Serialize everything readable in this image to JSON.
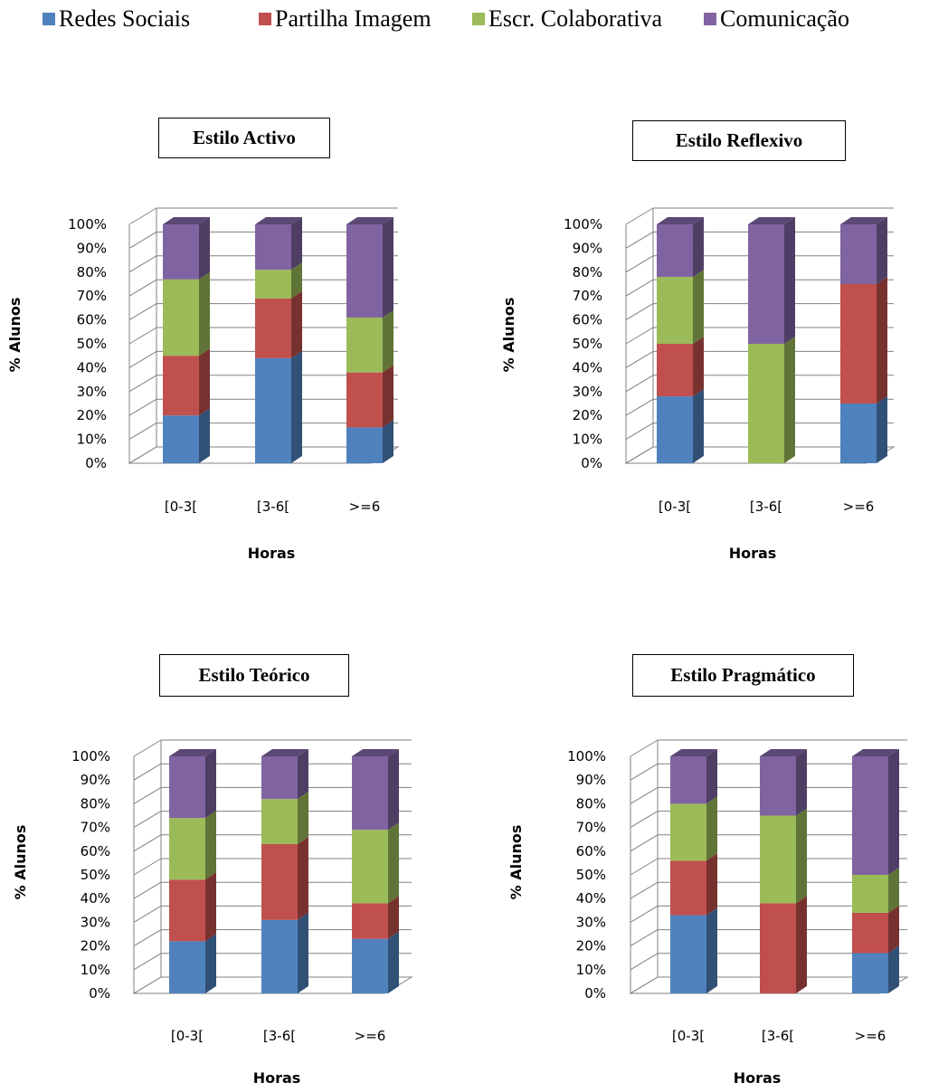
{
  "legend": [
    {
      "name": "Redes Sociais",
      "color": "#4f81bd"
    },
    {
      "name": "Partilha Imagem",
      "color": "#c0504d"
    },
    {
      "name": "Escr. Colaborativa",
      "color": "#9bbb59"
    },
    {
      "name": "Comunicação",
      "color": "#8064a2"
    }
  ],
  "chart_data": [
    {
      "type": "bar",
      "stacked": true,
      "title": "Estilo Activo",
      "xlabel": "Horas",
      "ylabel": "% Alunos",
      "yticks": [
        "0%",
        "10%",
        "20%",
        "30%",
        "40%",
        "50%",
        "60%",
        "70%",
        "80%",
        "90%",
        "100%"
      ],
      "ylim": [
        0,
        100
      ],
      "grid": true,
      "legend_position": "top",
      "categories": [
        "[0-3[",
        "[3-6[",
        ">=6"
      ],
      "series": [
        {
          "name": "Redes Sociais",
          "values": [
            20,
            44,
            15
          ]
        },
        {
          "name": "Partilha Imagem",
          "values": [
            25,
            25,
            23
          ]
        },
        {
          "name": "Escr. Colaborativa",
          "values": [
            32,
            12,
            23
          ]
        },
        {
          "name": "Comunicação",
          "values": [
            23,
            19,
            39
          ]
        }
      ]
    },
    {
      "type": "bar",
      "stacked": true,
      "title": "Estilo Reflexivo",
      "xlabel": "Horas",
      "ylabel": "% Alunos",
      "yticks": [
        "0%",
        "10%",
        "20%",
        "30%",
        "40%",
        "50%",
        "60%",
        "70%",
        "80%",
        "90%",
        "100%"
      ],
      "ylim": [
        0,
        100
      ],
      "grid": true,
      "legend_position": "top",
      "categories": [
        "[0-3[",
        "[3-6[",
        ">=6"
      ],
      "series": [
        {
          "name": "Redes Sociais",
          "values": [
            28,
            0,
            25
          ]
        },
        {
          "name": "Partilha Imagem",
          "values": [
            22,
            0,
            50
          ]
        },
        {
          "name": "Escr. Colaborativa",
          "values": [
            28,
            50,
            0
          ]
        },
        {
          "name": "Comunicação",
          "values": [
            22,
            50,
            25
          ]
        }
      ]
    },
    {
      "type": "bar",
      "stacked": true,
      "title": "Estilo Teórico",
      "xlabel": "Horas",
      "ylabel": "% Alunos",
      "yticks": [
        "0%",
        "10%",
        "20%",
        "30%",
        "40%",
        "50%",
        "60%",
        "70%",
        "80%",
        "90%",
        "100%"
      ],
      "ylim": [
        0,
        100
      ],
      "grid": true,
      "legend_position": "top",
      "categories": [
        "[0-3[",
        "[3-6[",
        ">=6"
      ],
      "series": [
        {
          "name": "Redes Sociais",
          "values": [
            22,
            31,
            23
          ]
        },
        {
          "name": "Partilha Imagem",
          "values": [
            26,
            32,
            15
          ]
        },
        {
          "name": "Escr. Colaborativa",
          "values": [
            26,
            19,
            31
          ]
        },
        {
          "name": "Comunicação",
          "values": [
            26,
            18,
            31
          ]
        }
      ]
    },
    {
      "type": "bar",
      "stacked": true,
      "title": "Estilo Pragmático",
      "xlabel": "Horas",
      "ylabel": "% Alunos",
      "yticks": [
        "0%",
        "10%",
        "20%",
        "30%",
        "40%",
        "50%",
        "60%",
        "70%",
        "80%",
        "90%",
        "100%"
      ],
      "ylim": [
        0,
        100
      ],
      "grid": true,
      "legend_position": "top",
      "categories": [
        "[0-3[",
        "[3-6[",
        ">=6"
      ],
      "series": [
        {
          "name": "Redes Sociais",
          "values": [
            33,
            0,
            17
          ]
        },
        {
          "name": "Partilha Imagem",
          "values": [
            23,
            38,
            17
          ]
        },
        {
          "name": "Escr. Colaborativa",
          "values": [
            24,
            37,
            16
          ]
        },
        {
          "name": "Comunicação",
          "values": [
            20,
            25,
            50
          ]
        }
      ]
    }
  ]
}
